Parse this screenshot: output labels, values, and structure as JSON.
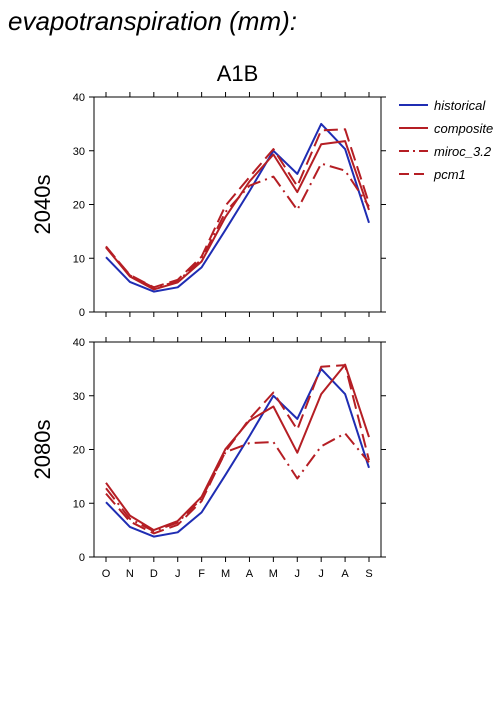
{
  "header": {
    "title": "evapotranspiration (mm):"
  },
  "colors": {
    "historical": "#1f2db3",
    "composite": "#b51e24",
    "miroc_3.2": "#b51e24",
    "pcm1": "#b51e24",
    "axis": "#000000"
  },
  "chart_data": [
    {
      "type": "line",
      "title": "A1B",
      "ylabel": "2040s",
      "categories": [
        "O",
        "N",
        "D",
        "J",
        "F",
        "M",
        "A",
        "M",
        "J",
        "J",
        "A",
        "S"
      ],
      "ylim": [
        0,
        40
      ],
      "yticks": [
        0,
        10,
        20,
        30,
        40
      ],
      "grid": false,
      "legend": "right",
      "series": [
        {
          "name": "historical",
          "style": "solid",
          "color": "#1f2db3",
          "values": [
            10.2,
            5.6,
            3.8,
            4.6,
            8.3,
            15.3,
            22.5,
            30.0,
            25.7,
            35.0,
            30.3,
            16.6
          ]
        },
        {
          "name": "composite",
          "style": "solid",
          "color": "#b51e24",
          "values": [
            12.0,
            6.6,
            4.2,
            5.5,
            9.4,
            17.7,
            24.3,
            29.3,
            22.3,
            31.2,
            31.8,
            19.0
          ]
        },
        {
          "name": "miroc_3.2",
          "style": "dashdot",
          "color": "#b51e24",
          "values": [
            12.2,
            6.8,
            4.5,
            5.7,
            9.8,
            18.6,
            23.5,
            25.2,
            19.0,
            27.6,
            26.3,
            19.6
          ]
        },
        {
          "name": "pcm1",
          "style": "dashed",
          "color": "#b51e24",
          "values": [
            12.1,
            6.9,
            4.6,
            6.0,
            10.3,
            19.8,
            25.1,
            30.3,
            23.4,
            33.8,
            34.0,
            20.2
          ]
        }
      ]
    },
    {
      "type": "line",
      "title": "",
      "ylabel": "2080s",
      "categories": [
        "O",
        "N",
        "D",
        "J",
        "F",
        "M",
        "A",
        "M",
        "J",
        "J",
        "A",
        "S"
      ],
      "ylim": [
        0,
        40
      ],
      "yticks": [
        0,
        10,
        20,
        30,
        40
      ],
      "grid": false,
      "series": [
        {
          "name": "historical",
          "style": "solid",
          "color": "#1f2db3",
          "values": [
            10.2,
            5.6,
            3.8,
            4.6,
            8.3,
            15.3,
            22.5,
            30.0,
            25.7,
            35.0,
            30.3,
            16.6
          ]
        },
        {
          "name": "composite",
          "style": "solid",
          "color": "#b51e24",
          "values": [
            13.8,
            7.7,
            5.0,
            6.7,
            11.2,
            20.1,
            25.4,
            28.0,
            19.4,
            30.3,
            35.8,
            22.3
          ]
        },
        {
          "name": "miroc_3.2",
          "style": "dashdot",
          "color": "#b51e24",
          "values": [
            12.8,
            7.1,
            4.8,
            6.4,
            10.9,
            19.5,
            21.2,
            21.4,
            14.6,
            20.6,
            23.0,
            17.6
          ]
        },
        {
          "name": "pcm1",
          "style": "dashed",
          "color": "#b51e24",
          "values": [
            11.8,
            6.6,
            4.4,
            6.0,
            10.4,
            19.6,
            25.7,
            30.6,
            23.7,
            35.4,
            35.7,
            18.0
          ]
        }
      ]
    }
  ]
}
